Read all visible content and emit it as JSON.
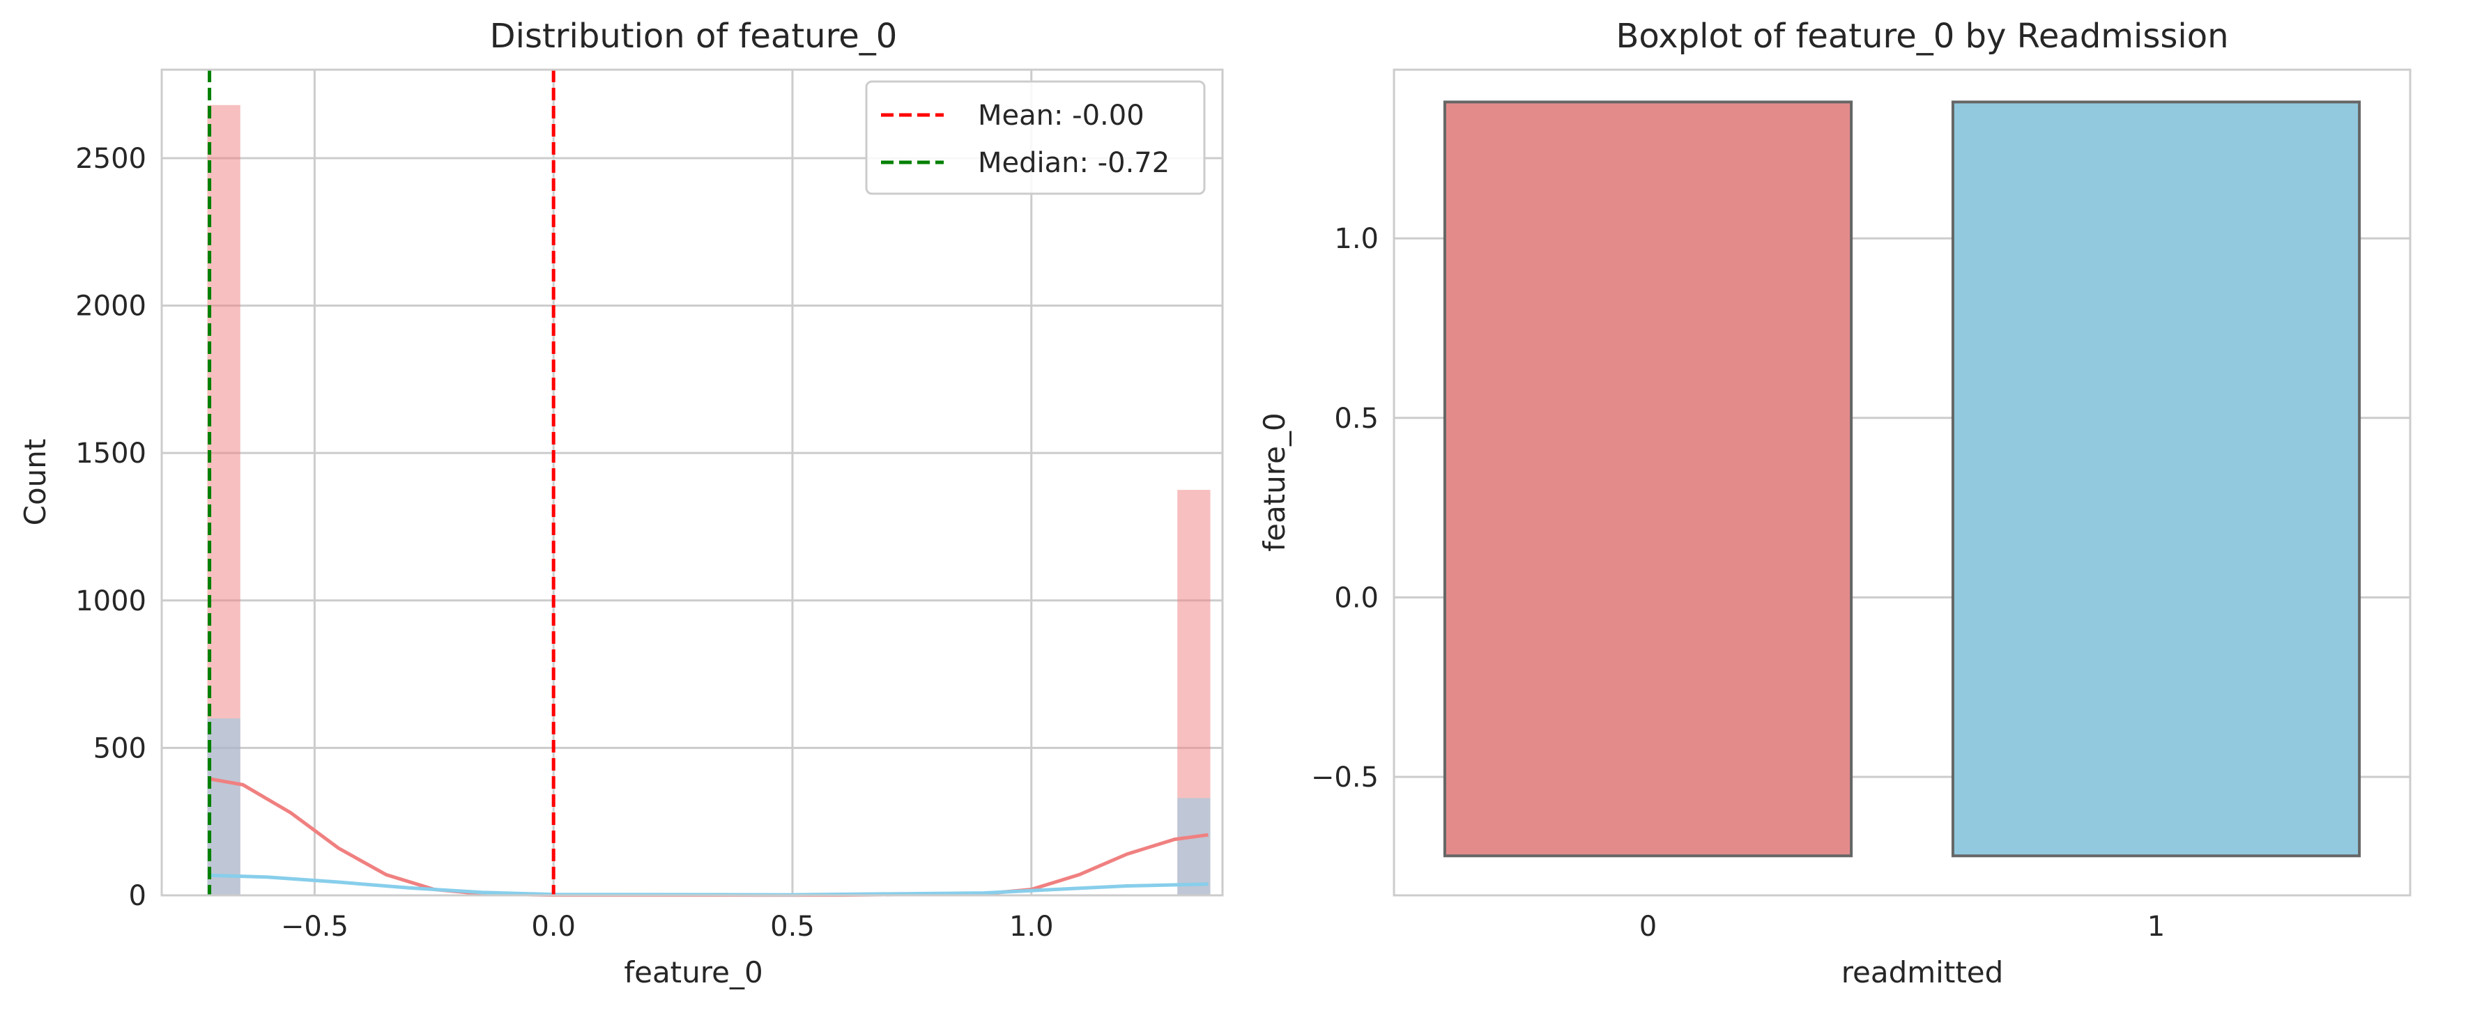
{
  "chart_data": [
    {
      "type": "histogram",
      "title": "Distribution of feature_0",
      "xlabel": "feature_0",
      "ylabel": "Count",
      "xlim": [
        -0.82,
        1.4
      ],
      "ylim": [
        0,
        2800
      ],
      "xticks": [
        -0.5,
        0.0,
        0.5,
        1.0
      ],
      "xtick_labels": [
        "−0.5",
        "0.0",
        "0.5",
        "1.0"
      ],
      "yticks": [
        0,
        500,
        1000,
        1500,
        2000,
        2500
      ],
      "ytick_labels": [
        "0",
        "500",
        "1000",
        "1500",
        "2000",
        "2500"
      ],
      "grid": true,
      "bin_width": 0.069,
      "series": [
        {
          "color": "#f08080",
          "opacity": 0.5,
          "bins": [
            {
              "x": -0.69,
              "count": 2680
            },
            {
              "x": 1.34,
              "count": 1375
            }
          ],
          "kde": [
            [
              -0.72,
              395
            ],
            [
              -0.65,
              375
            ],
            [
              -0.55,
              280
            ],
            [
              -0.45,
              160
            ],
            [
              -0.35,
              70
            ],
            [
              -0.25,
              20
            ],
            [
              -0.15,
              5
            ],
            [
              0.0,
              1
            ],
            [
              0.6,
              1
            ],
            [
              0.9,
              5
            ],
            [
              1.0,
              20
            ],
            [
              1.1,
              70
            ],
            [
              1.2,
              140
            ],
            [
              1.3,
              190
            ],
            [
              1.37,
              205
            ]
          ]
        },
        {
          "color": "#87ceeb",
          "opacity": 0.5,
          "bins": [
            {
              "x": -0.69,
              "count": 600
            },
            {
              "x": 1.34,
              "count": 330
            }
          ],
          "kde": [
            [
              -0.72,
              68
            ],
            [
              -0.6,
              62
            ],
            [
              -0.45,
              45
            ],
            [
              -0.3,
              25
            ],
            [
              -0.15,
              10
            ],
            [
              0.0,
              3
            ],
            [
              0.5,
              2
            ],
            [
              0.9,
              8
            ],
            [
              1.05,
              20
            ],
            [
              1.2,
              32
            ],
            [
              1.37,
              38
            ]
          ]
        }
      ],
      "reference_lines": [
        {
          "label": "Mean: -0.00",
          "x": 0.0,
          "color": "#ff0000"
        },
        {
          "label": "Median: -0.72",
          "x": -0.72,
          "color": "#008000"
        }
      ],
      "legend": "top-right"
    },
    {
      "type": "box",
      "title": "Boxplot of feature_0 by Readmission",
      "xlabel": "readmitted",
      "ylabel": "feature_0",
      "categories": [
        "0",
        "1"
      ],
      "ylim": [
        -0.83,
        1.47
      ],
      "yticks": [
        -0.5,
        0.0,
        0.5,
        1.0
      ],
      "ytick_labels": [
        "−0.5",
        "0.0",
        "0.5",
        "1.0"
      ],
      "grid": true,
      "boxes": [
        {
          "category": "0",
          "q1": -0.72,
          "q3": 1.38,
          "color": "#e38b8b"
        },
        {
          "category": "1",
          "q1": -0.72,
          "q3": 1.38,
          "color": "#92c9df"
        }
      ]
    }
  ]
}
